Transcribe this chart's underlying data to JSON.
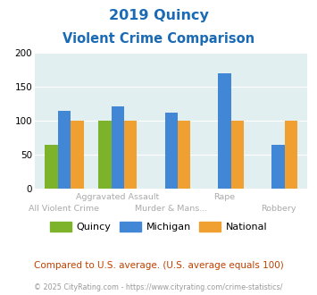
{
  "title_line1": "2019 Quincy",
  "title_line2": "Violent Crime Comparison",
  "series": {
    "Quincy": [
      65,
      100,
      0,
      0,
      0
    ],
    "Michigan": [
      115,
      122,
      112,
      170,
      65
    ],
    "National": [
      100,
      100,
      100,
      100,
      100
    ]
  },
  "colors": {
    "Quincy": "#7db32b",
    "Michigan": "#4287d6",
    "National": "#f0a030"
  },
  "ylim": [
    0,
    200
  ],
  "yticks": [
    0,
    50,
    100,
    150,
    200
  ],
  "plot_bg": "#e2eff0",
  "fig_bg": "#ffffff",
  "title_color": "#1a6ab5",
  "label_top": [
    "",
    "Aggravated Assault",
    "",
    "Rape",
    ""
  ],
  "label_bot": [
    "All Violent Crime",
    "",
    "Murder & Mans...",
    "",
    "Robbery"
  ],
  "footer_text": "Compared to U.S. average. (U.S. average equals 100)",
  "copyright_text": "© 2025 CityRating.com - https://www.cityrating.com/crime-statistics/",
  "footer_color": "#c04000",
  "copyright_color": "#999999",
  "label_color": "#aaaaaa"
}
